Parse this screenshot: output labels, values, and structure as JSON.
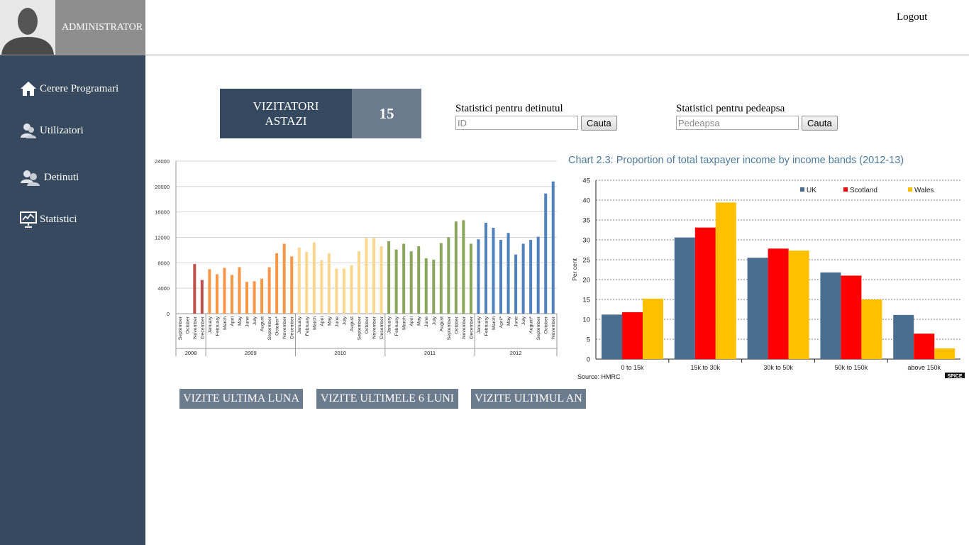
{
  "header": {
    "user_label": "ADMINISTRATOR",
    "logout_label": "Logout"
  },
  "sidebar": {
    "items": [
      {
        "label": "Cerere Programari",
        "icon": "home-icon"
      },
      {
        "label": "Utilizatori",
        "icon": "user-icon"
      },
      {
        "label": "Detinuti",
        "icon": "users-icon"
      },
      {
        "label": "Statistici",
        "icon": "presentation-chart-icon"
      }
    ]
  },
  "visitors": {
    "label_line1": "VIZITATORI",
    "label_line2": "ASTAZI",
    "count": "15"
  },
  "search": {
    "detainee_label": "Statistici pentru detinutul",
    "detainee_placeholder": "ID",
    "detainee_button": "Cauta",
    "sentence_label": "Statistici pentru pedeapsa",
    "sentence_placeholder": "Pedeapsa",
    "sentence_button": "Cauta"
  },
  "range_buttons": [
    "VIZITE ULTIMA LUNA",
    "VIZITE ULTIMELE 6 LUNI",
    "VIZITE ULTIMUL AN"
  ],
  "colors": {
    "sidebar": "#36495e",
    "y2008": "#c0504d",
    "y2009": "#f79646",
    "y2010": "#fad68e",
    "y2011": "#8aa65a",
    "y2012": "#4f81bd",
    "uk": "#4a6e8f",
    "scotland": "#ff0000",
    "wales": "#ffc000"
  },
  "chart_data": [
    {
      "type": "bar",
      "ylim": [
        0,
        24000
      ],
      "yticks": [
        "0",
        "4000",
        "8000",
        "12000",
        "16000",
        "20000",
        "24000"
      ],
      "grid": true,
      "groups": [
        {
          "year": "2008",
          "months": [
            "September",
            "October",
            "November",
            "December"
          ],
          "values": [
            0,
            0,
            7800,
            5300
          ]
        },
        {
          "year": "2009",
          "months": [
            "January",
            "February",
            "March",
            "April",
            "May",
            "June",
            "July",
            "August",
            "September",
            "October*",
            "November",
            "December"
          ],
          "values": [
            7000,
            6200,
            7200,
            6100,
            7300,
            5000,
            5100,
            5500,
            7300,
            9500,
            11000,
            9000
          ]
        },
        {
          "year": "2010",
          "months": [
            "January",
            "February",
            "March",
            "April",
            "May",
            "June",
            "July",
            "August",
            "September",
            "October",
            "November",
            "December"
          ],
          "values": [
            10400,
            9700,
            11200,
            8400,
            9500,
            7100,
            7100,
            7600,
            9800,
            11900,
            11900,
            10600
          ]
        },
        {
          "year": "2011",
          "months": [
            "January",
            "February",
            "March",
            "April",
            "May",
            "June",
            "July",
            "August",
            "September",
            "October",
            "November",
            "December"
          ],
          "values": [
            11400,
            10100,
            11000,
            9800,
            10600,
            8700,
            8500,
            11100,
            12000,
            14500,
            14700,
            11000
          ]
        },
        {
          "year": "2012",
          "months": [
            "January",
            "February",
            "March",
            "April*",
            "May",
            "June",
            "July",
            "August*",
            "September",
            "October",
            "November"
          ],
          "values": [
            11700,
            14300,
            13500,
            11600,
            12700,
            9300,
            11000,
            11600,
            12100,
            18900,
            20800
          ]
        }
      ]
    },
    {
      "type": "bar",
      "title": "Chart 2.3: Proportion of total taxpayer income by income bands (2012-13)",
      "ylabel": "Per cent",
      "ylim": [
        0,
        45
      ],
      "yticks": [
        "0",
        "5",
        "10",
        "15",
        "20",
        "25",
        "30",
        "35",
        "40",
        "45"
      ],
      "categories": [
        "0 to 15k",
        "15k to 30k",
        "30k to 50k",
        "50k to 150k",
        "above 150k"
      ],
      "series": [
        {
          "name": "UK",
          "values": [
            11.2,
            30.6,
            25.5,
            21.8,
            11.1
          ]
        },
        {
          "name": "Scotland",
          "values": [
            11.8,
            33.1,
            27.8,
            21.0,
            6.4
          ]
        },
        {
          "name": "Wales",
          "values": [
            15.2,
            39.4,
            27.3,
            15.0,
            2.7
          ]
        }
      ],
      "legend": "top-right",
      "grid": true,
      "source": "Source: HMRC",
      "logo": "SPICE"
    }
  ]
}
